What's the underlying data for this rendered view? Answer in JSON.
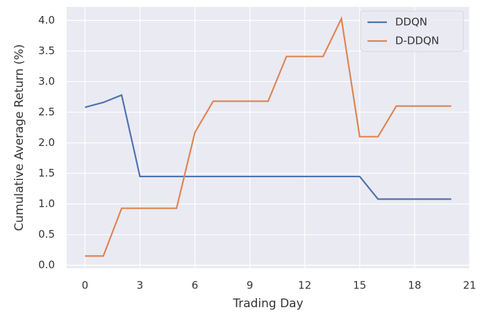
{
  "chart_data": {
    "type": "line",
    "xlabel": "Trading Day",
    "ylabel": "Cumulative Average Return (%)",
    "x": [
      0,
      1,
      2,
      3,
      4,
      5,
      6,
      7,
      8,
      9,
      10,
      11,
      12,
      13,
      14,
      15,
      16,
      17,
      18,
      19,
      20
    ],
    "series": [
      {
        "name": "DDQN",
        "color": "#4c72b0",
        "values": [
          2.58,
          2.66,
          2.78,
          1.45,
          1.45,
          1.45,
          1.45,
          1.45,
          1.45,
          1.45,
          1.45,
          1.45,
          1.45,
          1.45,
          1.45,
          1.45,
          1.08,
          1.08,
          1.08,
          1.08,
          1.08
        ]
      },
      {
        "name": "D-DDQN",
        "color": "#dd8452",
        "values": [
          0.15,
          0.15,
          0.93,
          0.93,
          0.93,
          0.93,
          2.17,
          2.68,
          2.68,
          2.68,
          2.68,
          3.41,
          3.41,
          3.41,
          4.03,
          2.1,
          2.1,
          2.6,
          2.6,
          2.6,
          2.6
        ]
      }
    ],
    "xlim": [
      -1,
      21
    ],
    "xticks": [
      0,
      3,
      6,
      9,
      12,
      15,
      18,
      21
    ],
    "ylim": [
      -0.05,
      4.22
    ],
    "yticks": [
      {
        "value": 0,
        "label": "0.0"
      },
      {
        "value": 0.5,
        "label": "0.5"
      },
      {
        "value": 1,
        "label": "1.0"
      },
      {
        "value": 1.5,
        "label": "1.5"
      },
      {
        "value": 2,
        "label": "2.0"
      },
      {
        "value": 2.5,
        "label": "2.5"
      },
      {
        "value": 3,
        "label": "3.0"
      },
      {
        "value": 3.5,
        "label": "3.5"
      },
      {
        "value": 4,
        "label": "4.0"
      }
    ],
    "grid": true,
    "legend": "upper right"
  }
}
